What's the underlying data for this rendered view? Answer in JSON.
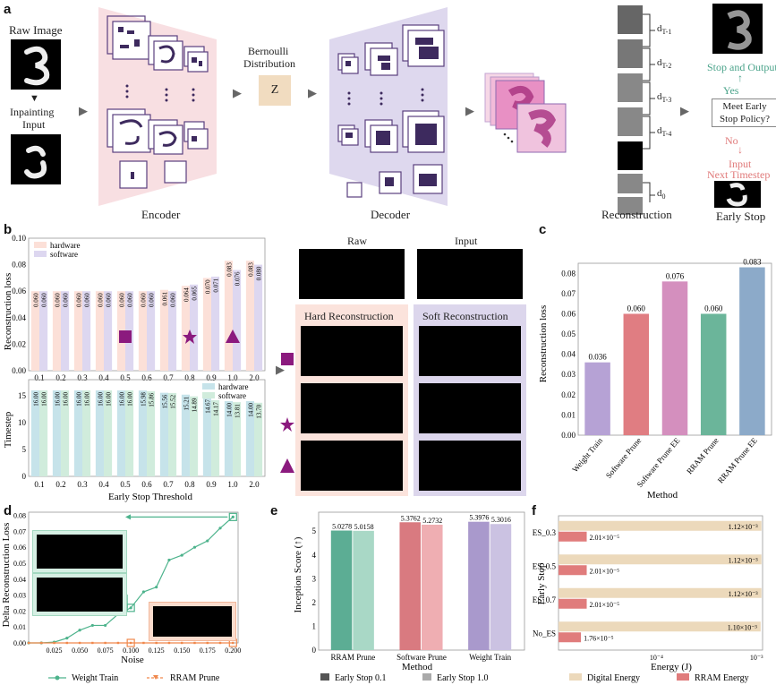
{
  "panel_labels": {
    "a": "a",
    "b": "b",
    "c": "c",
    "d": "d",
    "e": "e",
    "f": "f"
  },
  "panel_a": {
    "raw_image": "Raw Image",
    "inpainting_input_1": "Inpainting",
    "inpainting_input_2": "Input",
    "encoder": "Encoder",
    "bernoulli_1": "Bernoulli",
    "bernoulli_2": "Distribution",
    "z": "Z",
    "decoder": "Decoder",
    "reconstruction": "Reconstruction",
    "d_labels": [
      "d",
      "d",
      "d",
      "d",
      "d"
    ],
    "d_subs": [
      "T-1",
      "T-2",
      "T-3",
      "T-4",
      "0"
    ],
    "early_stop": "Early Stop",
    "stop_output": "Stop and Output",
    "yes": "Yes",
    "policy_1": "Meet Early",
    "policy_2": "Stop Policy?",
    "no": "No",
    "input_next_1": "Input",
    "input_next_2": "Next Timestep",
    "colors": {
      "encoder_bg": "#f8dfe2",
      "decoder_bg": "#ded8ee",
      "z_box": "#f1dcc0",
      "green": "#4aa38a",
      "red": "#e07a7a"
    }
  },
  "panel_b": {
    "ylabel_top": "Reconstruction loss",
    "ylabel_bottom": "Timestep",
    "xlabel": "Early Stop Threshold",
    "legend": [
      "hardware",
      "software"
    ],
    "raw_title": "Raw",
    "input_title": "Input",
    "hard_title": "Hard Reconstruction",
    "soft_title": "Soft Reconstruction",
    "colors": {
      "hw_top": "#fce0d8",
      "sw_top": "#ddd7f0",
      "hw_bot": "#c6e3ea",
      "sw_bot": "#d0ecdc",
      "marker": "#8b1a7e",
      "hard_bg": "#fbe3dc",
      "soft_bg": "#dcd6ec"
    }
  },
  "panel_c": {
    "ylabel": "Reconstruction loss",
    "xlabel": "Method"
  },
  "panel_d": {
    "ylabel": "Delta Reconstruction Loss",
    "xlabel": "Noise",
    "legend": [
      "Weight Train",
      "RRAM Prune"
    ]
  },
  "panel_e": {
    "ylabel": "Inception Score (↑)",
    "xlabel": "Method",
    "legend": [
      "Early Stop 0.1",
      "Early Stop 1.0"
    ]
  },
  "panel_f": {
    "ylabel": "Early Stop",
    "xlabel": "Energy (J)",
    "legend": [
      "Digital Energy",
      "RRAM Energy"
    ]
  },
  "chart_data": [
    {
      "id": "b-top",
      "type": "bar",
      "categories": [
        "0.1",
        "0.2",
        "0.3",
        "0.4",
        "0.5",
        "0.6",
        "0.7",
        "0.8",
        "0.9",
        "1.0",
        "2.0"
      ],
      "series": [
        {
          "name": "hardware",
          "values": [
            0.06,
            0.06,
            0.06,
            0.06,
            0.06,
            0.06,
            0.061,
            0.064,
            0.07,
            0.083,
            0.083
          ]
        },
        {
          "name": "software",
          "values": [
            0.06,
            0.06,
            0.06,
            0.06,
            0.06,
            0.06,
            0.06,
            0.065,
            0.071,
            0.076,
            0.08
          ]
        }
      ],
      "value_labels": {
        "hardware": [
          "0.060",
          "0.060",
          "0.060",
          "0.060",
          "0.060",
          "0.060",
          "0.061",
          "0.064",
          "0.070",
          "0.083",
          "0.083"
        ],
        "software": [
          "0.060",
          "0.060",
          "0.060",
          "0.060",
          "0.060",
          "0.060",
          "0.060",
          "0.065",
          "0.071",
          "0.076",
          "0.080"
        ]
      },
      "yticks": [
        "0.00",
        "0.02",
        "0.04",
        "0.06",
        "0.08",
        "0.10"
      ],
      "ylim": [
        0,
        0.1
      ],
      "markers": [
        {
          "at": "0.5",
          "shape": "square"
        },
        {
          "at": "0.8",
          "shape": "star"
        },
        {
          "at": "1.0",
          "shape": "triangle"
        }
      ],
      "legend_position": "top-left"
    },
    {
      "id": "b-bottom",
      "type": "bar",
      "categories": [
        "0.1",
        "0.2",
        "0.3",
        "0.4",
        "0.5",
        "0.6",
        "0.7",
        "0.8",
        "0.9",
        "1.0",
        "2.0"
      ],
      "series": [
        {
          "name": "hardware",
          "values": [
            16.0,
            16.0,
            16.0,
            16.0,
            16.0,
            15.98,
            15.56,
            15.21,
            14.67,
            14.0,
            14.0
          ]
        },
        {
          "name": "software",
          "values": [
            16.0,
            16.0,
            16.0,
            16.0,
            16.0,
            15.86,
            15.52,
            14.89,
            14.17,
            13.81,
            13.7
          ]
        }
      ],
      "value_labels": {
        "hardware": [
          "16.00",
          "16.00",
          "16.00",
          "16.00",
          "16.00",
          "15.98",
          "15.56",
          "15.21",
          "14.67",
          "14.00",
          "14.00"
        ],
        "software": [
          "16.00",
          "16.00",
          "16.00",
          "16.00",
          "16.00",
          "15.86",
          "15.52",
          "14.89",
          "14.17",
          "13.81",
          "13.70"
        ]
      },
      "yticks": [
        "0",
        "5",
        "10",
        "15"
      ],
      "ylim": [
        0,
        18
      ],
      "legend_position": "top-right"
    },
    {
      "id": "c",
      "type": "bar",
      "categories": [
        "Weight Train",
        "Software Prune",
        "Software Prune EE",
        "RRAM Prune",
        "RRAM Prune EE"
      ],
      "values": [
        0.036,
        0.06,
        0.076,
        0.06,
        0.083
      ],
      "value_labels": [
        "0.036",
        "0.060",
        "0.076",
        "0.060",
        "0.083"
      ],
      "colors": [
        "#b6a2d5",
        "#e07d82",
        "#d48fbe",
        "#6bb59a",
        "#8caac9"
      ],
      "yticks": [
        "0.00",
        "0.01",
        "0.02",
        "0.03",
        "0.04",
        "0.05",
        "0.06",
        "0.07",
        "0.08"
      ],
      "ylim": [
        0,
        0.085
      ]
    },
    {
      "id": "d",
      "type": "line",
      "x": [
        0.0,
        0.0125,
        0.025,
        0.0375,
        0.05,
        0.0625,
        0.075,
        0.0875,
        0.1,
        0.1125,
        0.125,
        0.1375,
        0.15,
        0.1625,
        0.175,
        0.1875,
        0.2
      ],
      "series": [
        {
          "name": "Weight Train",
          "values": [
            0.0,
            0.0,
            0.0005,
            0.003,
            0.008,
            0.011,
            0.011,
            0.018,
            0.022,
            0.032,
            0.035,
            0.052,
            0.055,
            0.06,
            0.064,
            0.072,
            0.079
          ]
        },
        {
          "name": "RRAM Prune",
          "values": [
            0.0,
            0.0,
            0.0,
            0.0,
            0.0,
            0.0,
            0.0,
            0.0,
            0.0,
            0.0,
            0.0,
            0.0,
            0.0,
            0.0,
            0.0,
            0.0,
            0.0
          ]
        }
      ],
      "xticks": [
        "0.025",
        "0.050",
        "0.075",
        "0.100",
        "0.125",
        "0.150",
        "0.175",
        "0.200"
      ],
      "yticks": [
        "0.00",
        "0.01",
        "0.02",
        "0.03",
        "0.04",
        "0.05",
        "0.06",
        "0.07",
        "0.08"
      ],
      "xlim": [
        0.0,
        0.205
      ],
      "ylim": [
        0,
        0.082
      ],
      "colors": {
        "Weight Train": "#4db38c",
        "RRAM Prune": "#f0884c"
      }
    },
    {
      "id": "e",
      "type": "bar",
      "categories": [
        "RRAM Prune",
        "Software Prune",
        "Weight Train"
      ],
      "series": [
        {
          "name": "Early Stop 0.1",
          "values": [
            5.0278,
            5.3762,
            5.3976
          ]
        },
        {
          "name": "Early Stop 1.0",
          "values": [
            5.0158,
            5.2732,
            5.3016
          ]
        }
      ],
      "value_labels": {
        "Early Stop 0.1": [
          "5.0278",
          "5.3762",
          "5.3976"
        ],
        "Early Stop 1.0": [
          "5.0158",
          "5.2732",
          "5.3016"
        ]
      },
      "colors": {
        "Early Stop 0.1": [
          "#5cad94",
          "#d97a80",
          "#a999cc"
        ],
        "Early Stop 1.0": [
          "#a9d8c6",
          "#efaeb2",
          "#cbc2e2"
        ]
      },
      "yticks": [
        "0",
        "1",
        "2",
        "3",
        "4",
        "5"
      ],
      "ylim": [
        0,
        5.8
      ]
    },
    {
      "id": "f",
      "type": "bar",
      "orientation": "horizontal",
      "categories": [
        "ES_0.3",
        "ES_0.5",
        "ES_0.7",
        "No_ES"
      ],
      "series": [
        {
          "name": "Digital Energy",
          "values": [
            0.00112,
            0.00112,
            0.00112,
            0.0011
          ]
        },
        {
          "name": "RRAM Energy",
          "values": [
            2.01e-05,
            2.01e-05,
            2.01e-05,
            1.76e-05
          ]
        }
      ],
      "value_labels": {
        "Digital Energy": [
          "1.12×10⁻³",
          "1.12×10⁻³",
          "1.12×10⁻³",
          "1.10×10⁻³"
        ],
        "RRAM Energy": [
          "2.01×10⁻⁵",
          "2.01×10⁻⁵",
          "2.01×10⁻⁵",
          "1.76×10⁻⁵"
        ]
      },
      "xscale": "log",
      "xticks": [
        "10⁻⁴",
        "10⁻³"
      ],
      "colors": {
        "Digital Energy": "#ecd9bb",
        "RRAM Energy": "#e07c7c"
      }
    }
  ]
}
